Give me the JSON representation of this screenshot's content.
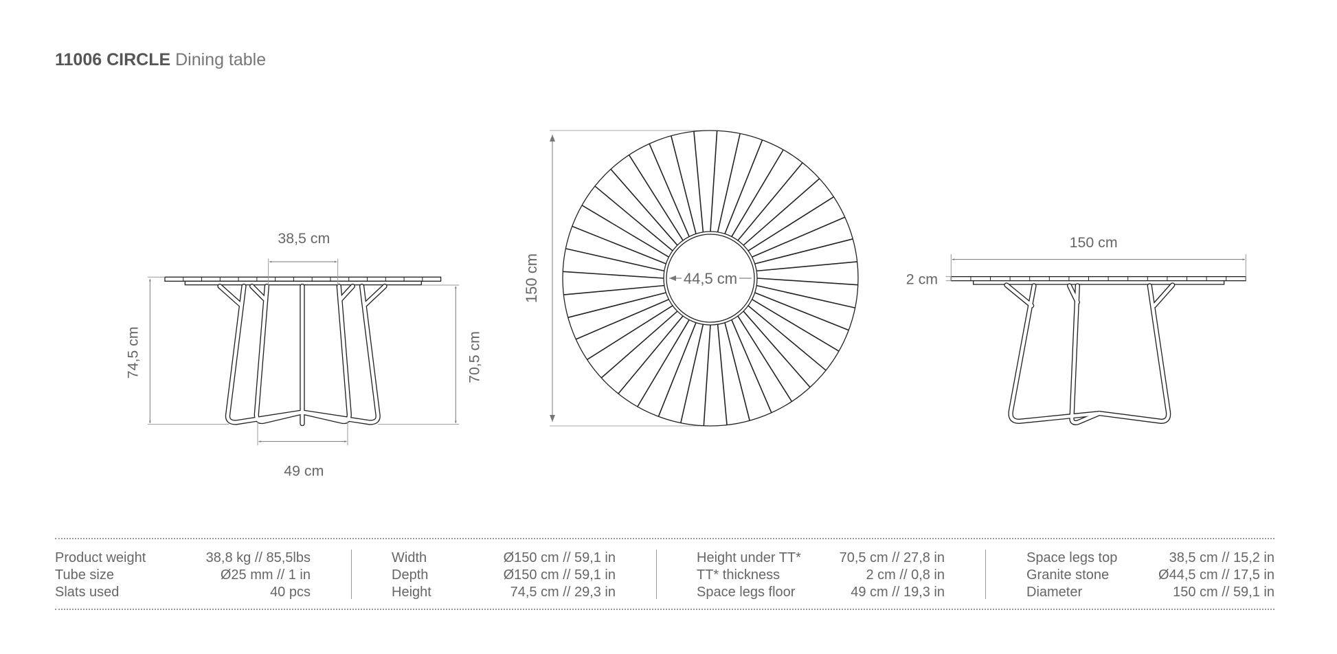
{
  "title": {
    "code": "11006",
    "name": "CIRCLE",
    "subtitle": "Dining table"
  },
  "side_view_left": {
    "top_space": "38,5 cm",
    "total_height": "74,5 cm",
    "height_under": "70,5 cm",
    "floor_space": "49 cm"
  },
  "top_view": {
    "diameter": "150 cm",
    "granite": "44,5 cm",
    "slats": 40
  },
  "side_view_right": {
    "width": "150 cm",
    "thickness": "2 cm"
  },
  "specs": [
    [
      {
        "label": "Product weight",
        "value": "38,8 kg // 85,5lbs"
      },
      {
        "label": "Tube size",
        "value": "Ø25 mm // 1 in"
      },
      {
        "label": "Slats used",
        "value": "40 pcs"
      }
    ],
    [
      {
        "label": "Width",
        "value": "Ø150 cm // 59,1 in"
      },
      {
        "label": "Depth",
        "value": "Ø150 cm // 59,1 in"
      },
      {
        "label": "Height",
        "value": "74,5 cm // 29,3 in"
      }
    ],
    [
      {
        "label": "Height under TT*",
        "value": "70,5 cm // 27,8  in"
      },
      {
        "label": "TT* thickness",
        "value": "2 cm // 0,8 in"
      },
      {
        "label": "Space legs floor",
        "value": "49 cm // 19,3 in"
      }
    ],
    [
      {
        "label": "Space legs top",
        "value": "38,5 cm // 15,2 in"
      },
      {
        "label": "Granite stone",
        "value": "Ø44,5 cm // 17,5 in"
      },
      {
        "label": "Diameter",
        "value": "150 cm // 59,1 in"
      }
    ]
  ]
}
